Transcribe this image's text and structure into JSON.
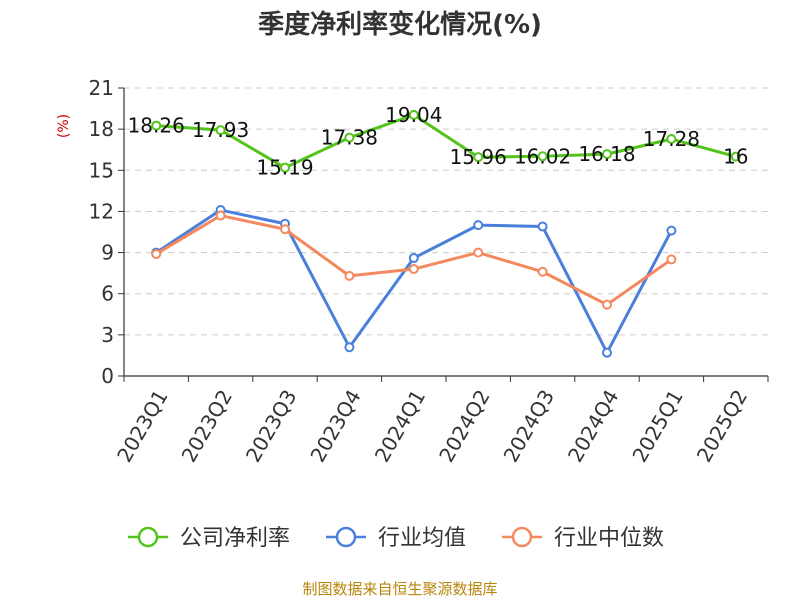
{
  "chart_data": {
    "type": "line",
    "title": "季度净利率变化情况(%)",
    "ylabel": "(%)",
    "categories": [
      "2023Q1",
      "2023Q2",
      "2023Q3",
      "2023Q4",
      "2024Q1",
      "2024Q2",
      "2024Q3",
      "2024Q4",
      "2025Q1",
      "2025Q2"
    ],
    "ylim": [
      0,
      21
    ],
    "yticks": [
      0,
      3,
      6,
      9,
      12,
      15,
      18,
      21
    ],
    "grid": true,
    "legend_position": "bottom",
    "series": [
      {
        "name": "公司净利率",
        "color": "#52c41a",
        "values": [
          18.26,
          17.93,
          15.19,
          17.38,
          19.04,
          15.96,
          16.02,
          16.18,
          17.28,
          16
        ],
        "labels": [
          "18.26",
          "17.93",
          "15.19",
          "17.38",
          "19.04",
          "15.96",
          "16.02",
          "16.18",
          "17.28",
          "16"
        ]
      },
      {
        "name": "行业均值",
        "color": "#4a7fdc",
        "values": [
          9.0,
          12.1,
          11.1,
          2.1,
          8.6,
          11.0,
          10.9,
          1.7,
          10.6,
          null
        ]
      },
      {
        "name": "行业中位数",
        "color": "#f4895f",
        "values": [
          8.9,
          11.7,
          10.7,
          7.3,
          7.8,
          9.0,
          7.6,
          5.2,
          8.5,
          null
        ]
      }
    ],
    "source": "制图数据来自恒生聚源数据库"
  }
}
